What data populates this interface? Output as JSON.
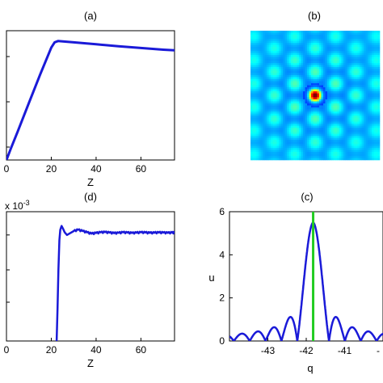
{
  "figure": {
    "panels": {
      "a": {
        "title": "(a)",
        "xlabel": "Z"
      },
      "b": {
        "title": "(b)"
      },
      "c": {
        "title": "(c)",
        "xlabel": "q",
        "ylabel": "u"
      },
      "d": {
        "title": "(d)",
        "xlabel": "Z",
        "exponent_label": "x 10",
        "exponent_power": "-3"
      }
    }
  },
  "chart_data": [
    {
      "panel": "a",
      "type": "line",
      "title": "(a)",
      "xlabel": "Z",
      "ylabel": "",
      "xlim": [
        0,
        75
      ],
      "xticks": [
        0,
        20,
        40,
        60
      ],
      "tick_labels": [
        "0",
        "20",
        "40",
        "60"
      ],
      "y_tick_fracs": [
        0.1,
        0.45,
        0.8
      ],
      "line_color": "#1a1ad8",
      "series": [
        {
          "x": [
            0,
            2,
            5,
            10,
            15,
            20,
            21.5,
            23,
            30,
            40,
            50,
            60,
            70,
            75
          ],
          "y": [
            0.0,
            0.09,
            0.22,
            0.44,
            0.66,
            0.87,
            0.91,
            0.92,
            0.91,
            0.895,
            0.88,
            0.866,
            0.853,
            0.848
          ]
        }
      ]
    },
    {
      "panel": "b",
      "type": "heatmap",
      "title": "(b)",
      "colormap": "jet",
      "background_color": "#1f9ad8",
      "peak_color": "#d40000",
      "description_symmetry": 6
    },
    {
      "panel": "d",
      "type": "line",
      "title": "(d)",
      "xlabel": "Z",
      "ylabel": "",
      "xlim": [
        0,
        75
      ],
      "xticks": [
        0,
        20,
        40,
        60
      ],
      "tick_labels": [
        "0",
        "20",
        "40",
        "60"
      ],
      "y_tick_fracs": [
        0.0,
        0.3,
        0.55,
        0.82
      ],
      "line_color": "#1a1ad8",
      "series": [
        {
          "x": [
            0,
            22.4,
            22.8,
            23.2,
            23.6,
            24,
            24.6,
            25.2,
            26,
            27,
            28,
            30,
            32,
            34,
            36,
            38,
            40,
            42,
            44,
            46,
            48,
            50,
            52,
            54,
            56,
            58,
            60,
            62,
            64,
            66,
            68,
            70,
            72,
            74,
            75
          ],
          "y": [
            null,
            0.0,
            0.25,
            0.55,
            0.78,
            0.86,
            0.89,
            0.87,
            0.84,
            0.82,
            0.83,
            0.85,
            0.86,
            0.85,
            0.84,
            0.83,
            0.835,
            0.84,
            0.842,
            0.838,
            0.834,
            0.836,
            0.84,
            0.838,
            0.835,
            0.837,
            0.84,
            0.839,
            0.836,
            0.837,
            0.839,
            0.838,
            0.836,
            0.838,
            0.837
          ]
        }
      ]
    },
    {
      "panel": "c",
      "type": "line",
      "title": "(c)",
      "xlabel": "q",
      "ylabel": "u",
      "xlim": [
        -44,
        -40
      ],
      "ylim": [
        0,
        6
      ],
      "xticks": [
        -43,
        -42,
        -41
      ],
      "xtick_labels": [
        "-43",
        "-42",
        "-41",
        "-"
      ],
      "yticks": [
        0,
        2,
        4,
        6
      ],
      "ytick_labels": [
        "0",
        "2",
        "4",
        "6"
      ],
      "vertical_line_x": -41.82,
      "vertical_line_color": "#22cc22",
      "line_color": "#1a1ad8",
      "peak_center": -41.82,
      "peak_height": 5.5
    }
  ]
}
